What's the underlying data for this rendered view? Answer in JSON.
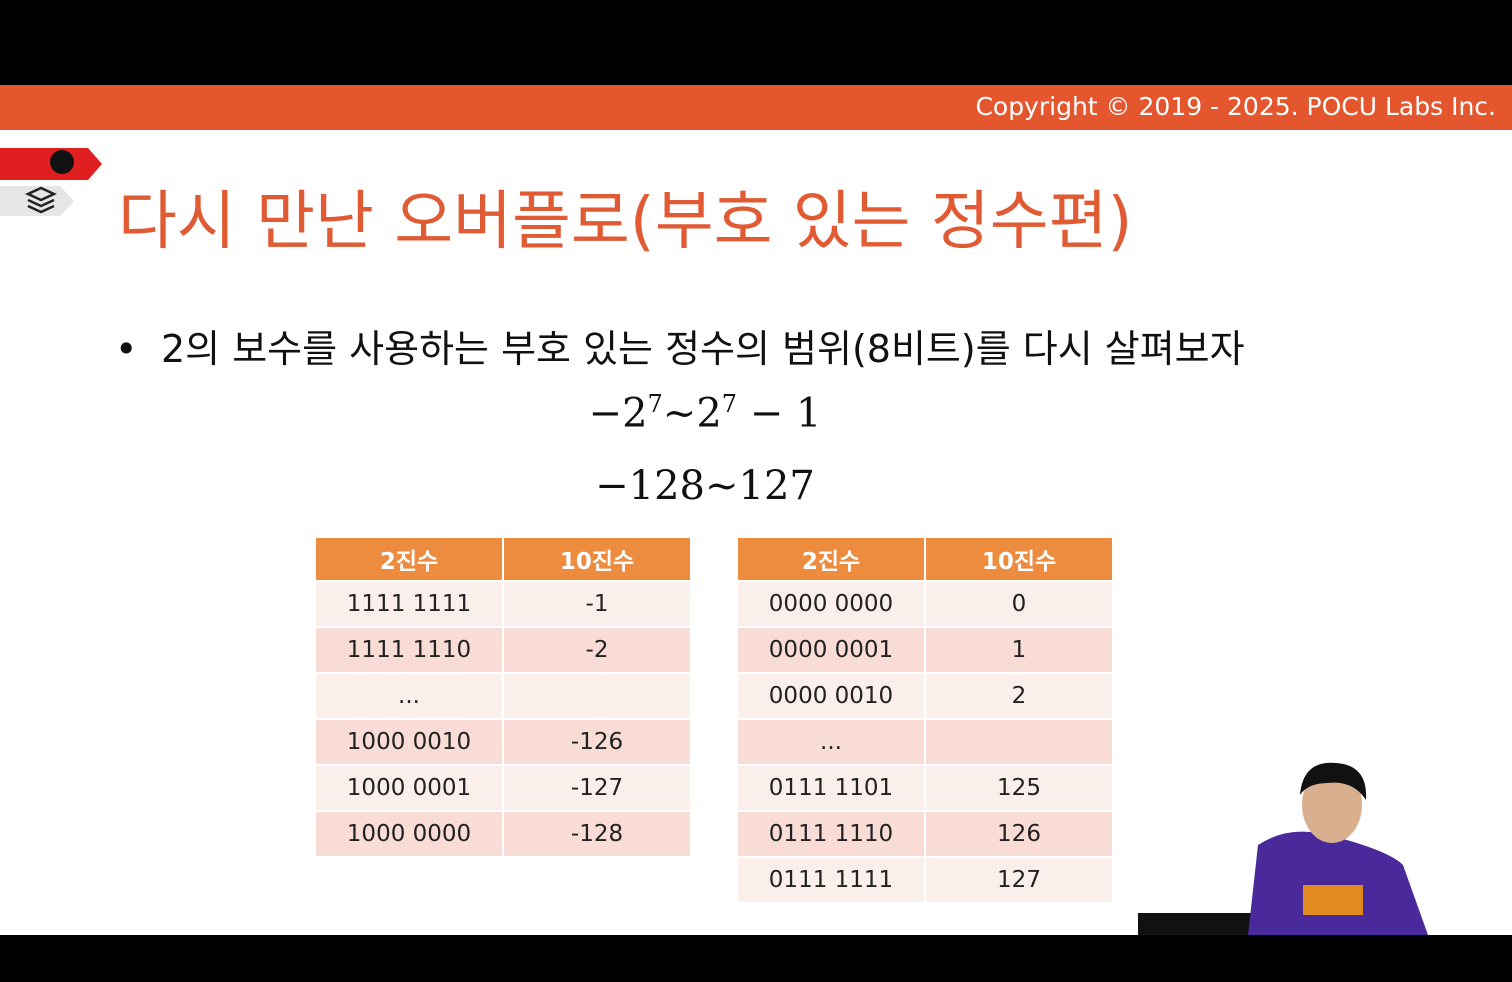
{
  "header": {
    "copyright": "Copyright © 2019 - 2025. POCU Labs Inc."
  },
  "slide": {
    "title": "다시 만난 오버플로(부호 있는 정수편)",
    "bullet": "2의 보수를 사용하는 부호 있는 정수의 범위(8비트)를 다시 살펴보자",
    "formulas": [
      [
        {
          "text": "−2"
        },
        {
          "text": "7",
          "sup": true
        },
        {
          "text": "~2"
        },
        {
          "text": "7",
          "sup": true
        },
        {
          "text": " − 1"
        }
      ],
      [
        {
          "text": "−128~127"
        }
      ]
    ],
    "tables": [
      {
        "header": [
          "2진수",
          "10진수"
        ],
        "rows": [
          [
            "1111 1111",
            "-1"
          ],
          [
            "1111 1110",
            "-2"
          ],
          [
            "...",
            null
          ],
          [
            "1000 0010",
            "-126"
          ],
          [
            "1000 0001",
            "-127"
          ],
          [
            "1000 0000",
            "-128"
          ]
        ]
      },
      {
        "header": [
          "2진수",
          "10진수"
        ],
        "rows": [
          [
            "0000 0000",
            "0"
          ],
          [
            "0000 0001",
            "1"
          ],
          [
            "0000 0010",
            "2"
          ],
          [
            "...",
            null
          ],
          [
            "0111 1101",
            "125"
          ],
          [
            "0111 1110",
            "126"
          ],
          [
            "0111 1111",
            "127"
          ]
        ]
      }
    ]
  }
}
